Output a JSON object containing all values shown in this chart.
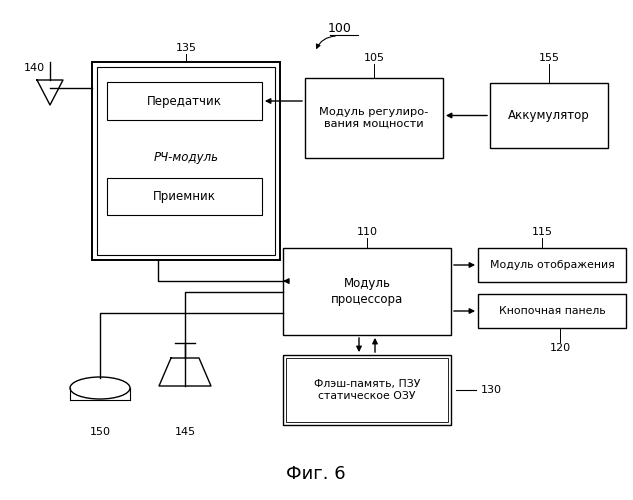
{
  "title": "Фиг. 6",
  "label_100": "100",
  "label_140": "140",
  "label_135": "135",
  "label_105": "105",
  "label_155": "155",
  "label_110": "110",
  "label_115": "115",
  "label_120": "120",
  "label_130": "130",
  "label_150": "150",
  "label_145": "145",
  "box_transmitter": "Передатчик",
  "box_receiver": "Приемник",
  "box_rf": "РЧ-модуль",
  "box_power": "Модуль регулиро-\nвания мощности",
  "box_battery": "Аккумулятор",
  "box_processor": "Модуль\nпроцессора",
  "box_display": "Модуль отображения",
  "box_keypad": "Кнопочная панель",
  "box_memory": "Флэш-память, ПЗУ\nстатическое ОЗУ",
  "bg_color": "#ffffff",
  "box_color": "#ffffff",
  "line_color": "#000000",
  "text_color": "#000000"
}
